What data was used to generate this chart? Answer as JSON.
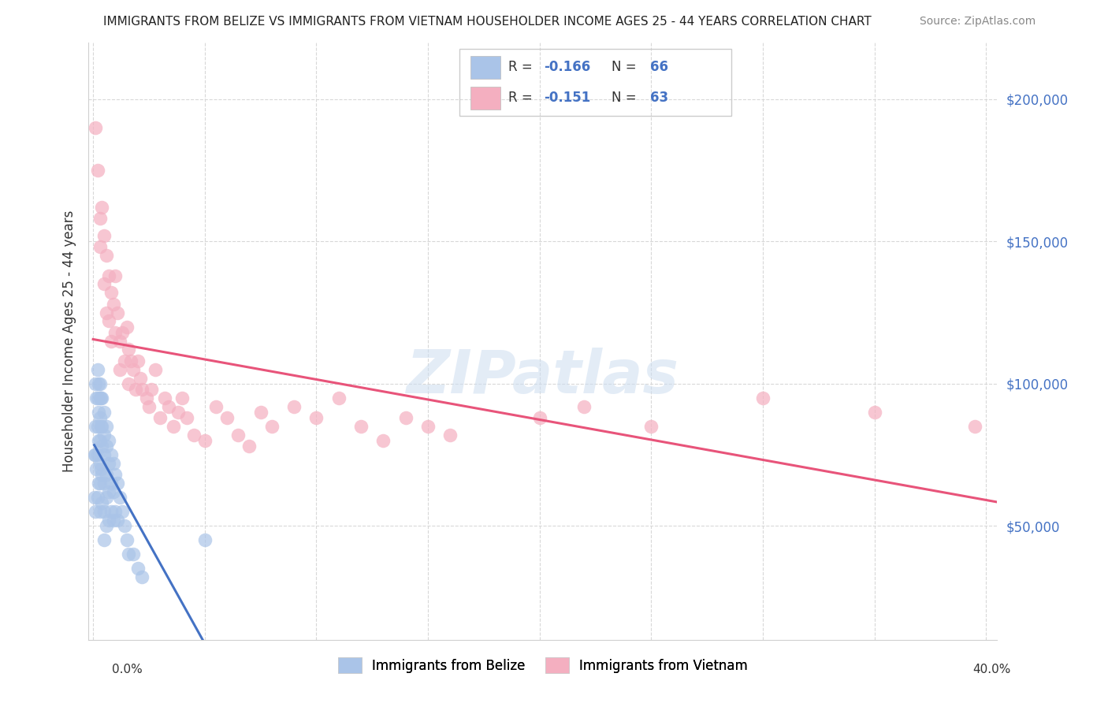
{
  "title": "IMMIGRANTS FROM BELIZE VS IMMIGRANTS FROM VIETNAM HOUSEHOLDER INCOME AGES 25 - 44 YEARS CORRELATION CHART",
  "source": "Source: ZipAtlas.com",
  "ylabel": "Householder Income Ages 25 - 44 years",
  "watermark": "ZIPatlas",
  "belize_color": "#aac4e8",
  "belize_color_line": "#4472c4",
  "vietnam_color": "#f4afc0",
  "vietnam_color_line": "#e8547a",
  "belize_R": "-0.166",
  "belize_N": "66",
  "vietnam_R": "-0.151",
  "vietnam_N": "63",
  "ytick_labels": [
    "$50,000",
    "$100,000",
    "$150,000",
    "$200,000"
  ],
  "ytick_values": [
    50000,
    100000,
    150000,
    200000
  ],
  "ylim": [
    10000,
    220000
  ],
  "xlim": [
    -0.002,
    0.405
  ],
  "belize_x": [
    0.0005,
    0.0005,
    0.001,
    0.001,
    0.001,
    0.001,
    0.0015,
    0.0015,
    0.002,
    0.002,
    0.002,
    0.002,
    0.002,
    0.0025,
    0.0025,
    0.0025,
    0.0025,
    0.003,
    0.003,
    0.003,
    0.003,
    0.003,
    0.003,
    0.003,
    0.0035,
    0.0035,
    0.0035,
    0.004,
    0.004,
    0.004,
    0.004,
    0.004,
    0.005,
    0.005,
    0.005,
    0.005,
    0.005,
    0.005,
    0.006,
    0.006,
    0.006,
    0.006,
    0.006,
    0.007,
    0.007,
    0.007,
    0.007,
    0.008,
    0.008,
    0.008,
    0.009,
    0.009,
    0.009,
    0.01,
    0.01,
    0.011,
    0.011,
    0.012,
    0.013,
    0.014,
    0.015,
    0.016,
    0.018,
    0.02,
    0.022,
    0.05
  ],
  "belize_y": [
    75000,
    60000,
    100000,
    85000,
    75000,
    55000,
    95000,
    70000,
    105000,
    95000,
    85000,
    75000,
    60000,
    100000,
    90000,
    80000,
    65000,
    100000,
    95000,
    88000,
    80000,
    72000,
    65000,
    55000,
    95000,
    85000,
    70000,
    95000,
    85000,
    78000,
    68000,
    58000,
    90000,
    82000,
    75000,
    65000,
    55000,
    45000,
    85000,
    78000,
    68000,
    60000,
    50000,
    80000,
    72000,
    62000,
    52000,
    75000,
    65000,
    55000,
    72000,
    62000,
    52000,
    68000,
    55000,
    65000,
    52000,
    60000,
    55000,
    50000,
    45000,
    40000,
    40000,
    35000,
    32000,
    45000
  ],
  "vietnam_x": [
    0.001,
    0.002,
    0.003,
    0.003,
    0.004,
    0.005,
    0.005,
    0.006,
    0.006,
    0.007,
    0.007,
    0.008,
    0.008,
    0.009,
    0.01,
    0.01,
    0.011,
    0.012,
    0.012,
    0.013,
    0.014,
    0.015,
    0.016,
    0.016,
    0.017,
    0.018,
    0.019,
    0.02,
    0.021,
    0.022,
    0.024,
    0.025,
    0.026,
    0.028,
    0.03,
    0.032,
    0.034,
    0.036,
    0.038,
    0.04,
    0.042,
    0.045,
    0.05,
    0.055,
    0.06,
    0.065,
    0.07,
    0.075,
    0.08,
    0.09,
    0.1,
    0.11,
    0.12,
    0.13,
    0.14,
    0.15,
    0.16,
    0.2,
    0.22,
    0.25,
    0.3,
    0.35,
    0.395
  ],
  "vietnam_y": [
    190000,
    175000,
    158000,
    148000,
    162000,
    152000,
    135000,
    145000,
    125000,
    138000,
    122000,
    132000,
    115000,
    128000,
    138000,
    118000,
    125000,
    115000,
    105000,
    118000,
    108000,
    120000,
    112000,
    100000,
    108000,
    105000,
    98000,
    108000,
    102000,
    98000,
    95000,
    92000,
    98000,
    105000,
    88000,
    95000,
    92000,
    85000,
    90000,
    95000,
    88000,
    82000,
    80000,
    92000,
    88000,
    82000,
    78000,
    90000,
    85000,
    92000,
    88000,
    95000,
    85000,
    80000,
    88000,
    85000,
    82000,
    88000,
    92000,
    85000,
    95000,
    90000,
    85000
  ]
}
